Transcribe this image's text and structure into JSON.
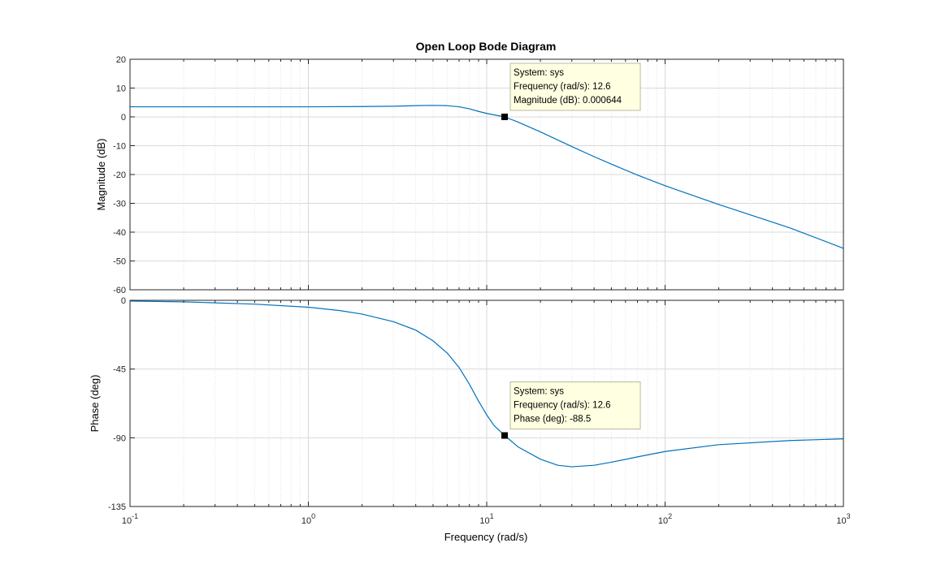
{
  "chart_data": [
    {
      "type": "line",
      "title": "Open Loop Bode Diagram",
      "xlabel": "Frequency  (rad/s)",
      "ylabel": "Magnitude (dB)",
      "xscale": "log",
      "xlim": [
        0.1,
        1000
      ],
      "ylim": [
        -60,
        20
      ],
      "yticks": [
        20,
        10,
        0,
        -10,
        -20,
        -30,
        -40,
        -50,
        -60
      ],
      "grid": true,
      "series": [
        {
          "color": "#0072bd",
          "x": [
            0.1,
            0.2,
            0.5,
            1,
            2,
            3,
            4,
            5,
            6,
            7,
            8,
            9,
            10,
            11,
            12.6,
            15,
            20,
            30,
            40,
            50,
            70,
            100,
            200,
            500,
            1000
          ],
          "y": [
            3.5,
            3.5,
            3.5,
            3.5,
            3.6,
            3.7,
            3.9,
            4.0,
            3.9,
            3.5,
            2.8,
            1.9,
            1.2,
            0.7,
            0.0,
            -1.8,
            -5.2,
            -10.3,
            -13.8,
            -16.4,
            -20.2,
            -23.9,
            -30.4,
            -38.5,
            -45.6
          ]
        }
      ],
      "datatip": {
        "x": 12.6,
        "y": 0.000644,
        "lines": [
          "System: sys",
          "Frequency (rad/s): 12.6",
          "Magnitude (dB): 0.000644"
        ]
      }
    },
    {
      "type": "line",
      "xlabel": "Frequency  (rad/s)",
      "ylabel": "Phase (deg)",
      "xscale": "log",
      "xlim": [
        0.1,
        1000
      ],
      "ylim": [
        -135,
        0
      ],
      "yticks": [
        0,
        -45,
        -90,
        -135
      ],
      "xticks": [
        {
          "value": 0.1,
          "base": "10",
          "exp": "-1"
        },
        {
          "value": 1,
          "base": "10",
          "exp": "0"
        },
        {
          "value": 10,
          "base": "10",
          "exp": "1"
        },
        {
          "value": 100,
          "base": "10",
          "exp": "2"
        },
        {
          "value": 1000,
          "base": "10",
          "exp": "3"
        }
      ],
      "grid": true,
      "series": [
        {
          "color": "#0072bd",
          "x": [
            0.1,
            0.2,
            0.5,
            1,
            1.5,
            2,
            3,
            4,
            5,
            6,
            7,
            8,
            9,
            10,
            11,
            12.6,
            15,
            20,
            25,
            30,
            40,
            50,
            70,
            100,
            200,
            500,
            1000
          ],
          "y": [
            -0.5,
            -1.0,
            -2.5,
            -4.5,
            -6.7,
            -9.0,
            -14.0,
            -19.5,
            -26.5,
            -34.5,
            -44.0,
            -55.0,
            -66.0,
            -75.0,
            -82.0,
            -88.5,
            -96.0,
            -104.0,
            -108.0,
            -109.0,
            -108.0,
            -106.0,
            -102.5,
            -99.0,
            -94.5,
            -91.8,
            -90.7
          ]
        }
      ],
      "datatip": {
        "x": 12.6,
        "y": -88.5,
        "lines": [
          "System: sys",
          "Frequency (rad/s): 12.6",
          "Phase (deg): -88.5"
        ]
      }
    }
  ]
}
